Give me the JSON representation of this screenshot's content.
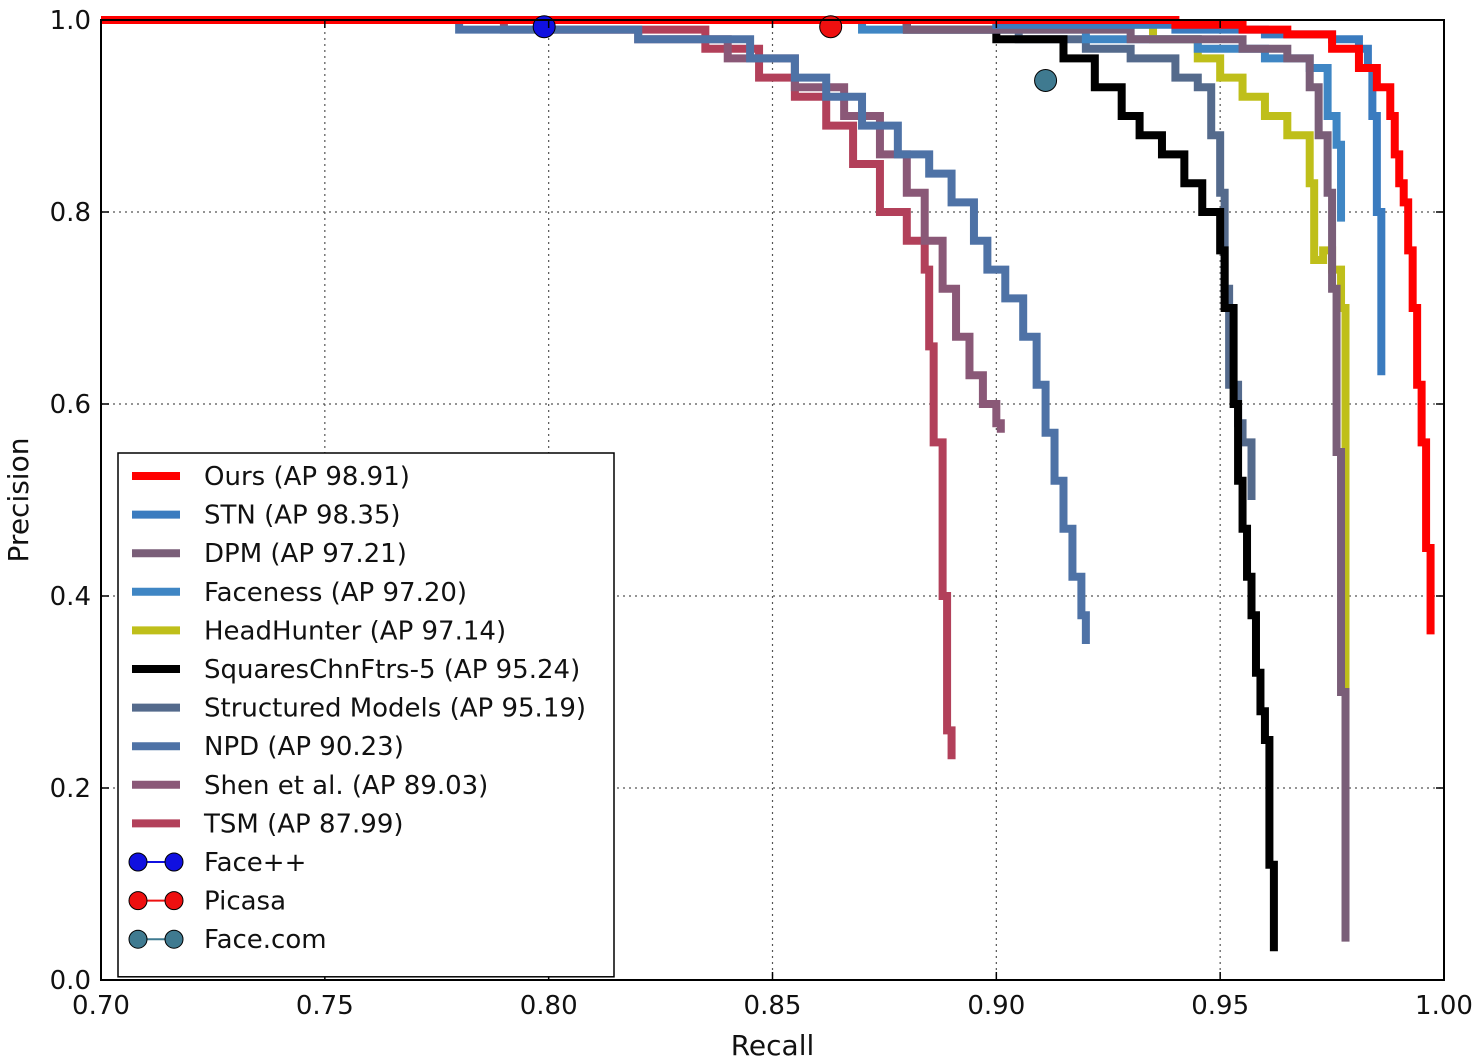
{
  "chart_data": {
    "type": "line",
    "title": "",
    "xlabel": "Recall",
    "ylabel": "Precision",
    "xlim": [
      0.7,
      1.0
    ],
    "ylim": [
      0.0,
      1.0
    ],
    "xticks": [
      "0.70",
      "0.75",
      "0.80",
      "0.85",
      "0.90",
      "0.95",
      "1.00"
    ],
    "yticks": [
      "0.0",
      "0.2",
      "0.4",
      "0.6",
      "0.8",
      "1.0"
    ],
    "grid": true,
    "legend_position": "bottom-left",
    "series": [
      {
        "name": "Ours (AP 98.91)",
        "color": "#ff0000",
        "x": [
          0.7,
          0.9,
          0.94,
          0.955,
          0.965,
          0.975,
          0.981,
          0.985,
          0.988,
          0.989,
          0.99,
          0.991,
          0.992,
          0.993,
          0.994,
          0.995,
          0.996,
          0.997,
          0.997
        ],
        "y": [
          1.0,
          1.0,
          0.995,
          0.99,
          0.985,
          0.97,
          0.95,
          0.93,
          0.9,
          0.86,
          0.83,
          0.81,
          0.76,
          0.7,
          0.62,
          0.56,
          0.45,
          0.42,
          0.36
        ]
      },
      {
        "name": "STN (AP 98.35)",
        "color": "#3a7bbf",
        "x": [
          0.7,
          0.9,
          0.94,
          0.96,
          0.975,
          0.981,
          0.983,
          0.984,
          0.985,
          0.986,
          0.986
        ],
        "y": [
          1.0,
          0.995,
          0.99,
          0.985,
          0.98,
          0.97,
          0.95,
          0.9,
          0.8,
          0.7,
          0.63
        ]
      },
      {
        "name": "DPM (AP 97.21)",
        "color": "#7a5e78",
        "x": [
          0.7,
          0.88,
          0.93,
          0.955,
          0.965,
          0.97,
          0.972,
          0.974,
          0.975,
          0.976,
          0.977,
          0.978,
          0.978
        ],
        "y": [
          1.0,
          0.99,
          0.98,
          0.97,
          0.96,
          0.93,
          0.88,
          0.82,
          0.72,
          0.55,
          0.3,
          0.2,
          0.04
        ]
      },
      {
        "name": "Faceness (AP 97.20)",
        "color": "#3f86c4",
        "x": [
          0.7,
          0.87,
          0.92,
          0.945,
          0.96,
          0.97,
          0.974,
          0.976,
          0.977,
          0.977
        ],
        "y": [
          1.0,
          0.99,
          0.98,
          0.97,
          0.96,
          0.95,
          0.9,
          0.87,
          0.8,
          0.79
        ]
      },
      {
        "name": "HeadHunter (AP 97.14)",
        "color": "#bfbf1a",
        "x": [
          0.7,
          0.9,
          0.935,
          0.945,
          0.95,
          0.955,
          0.96,
          0.965,
          0.97,
          0.97,
          0.971,
          0.973,
          0.975,
          0.977,
          0.978,
          0.978
        ],
        "y": [
          1.0,
          0.995,
          0.98,
          0.96,
          0.94,
          0.92,
          0.9,
          0.88,
          0.88,
          0.83,
          0.75,
          0.76,
          0.74,
          0.7,
          0.42,
          0.26
        ]
      },
      {
        "name": "SquaresChnFtrs-5 (AP 95.24)",
        "color": "#000000",
        "x": [
          0.7,
          0.88,
          0.9,
          0.915,
          0.922,
          0.928,
          0.932,
          0.937,
          0.942,
          0.946,
          0.95,
          0.951,
          0.953,
          0.954,
          0.955,
          0.956,
          0.957,
          0.958,
          0.959,
          0.96,
          0.961,
          0.962,
          0.962
        ],
        "y": [
          1.0,
          0.99,
          0.98,
          0.96,
          0.93,
          0.9,
          0.88,
          0.86,
          0.83,
          0.8,
          0.76,
          0.7,
          0.6,
          0.52,
          0.47,
          0.42,
          0.38,
          0.32,
          0.28,
          0.25,
          0.12,
          0.05,
          0.03
        ]
      },
      {
        "name": "Structured Models (AP 95.19)",
        "color": "#546a8c",
        "x": [
          0.7,
          0.88,
          0.905,
          0.92,
          0.93,
          0.94,
          0.945,
          0.948,
          0.95,
          0.951,
          0.952,
          0.954,
          0.955,
          0.957,
          0.957
        ],
        "y": [
          1.0,
          0.99,
          0.98,
          0.97,
          0.96,
          0.94,
          0.93,
          0.88,
          0.82,
          0.72,
          0.62,
          0.58,
          0.56,
          0.51,
          0.5
        ]
      },
      {
        "name": "NPD (AP 90.23)",
        "color": "#4e72a6",
        "x": [
          0.7,
          0.78,
          0.82,
          0.845,
          0.855,
          0.862,
          0.87,
          0.878,
          0.885,
          0.89,
          0.895,
          0.898,
          0.902,
          0.906,
          0.909,
          0.911,
          0.913,
          0.915,
          0.917,
          0.919,
          0.92
        ],
        "y": [
          1.0,
          0.99,
          0.98,
          0.96,
          0.94,
          0.92,
          0.89,
          0.86,
          0.84,
          0.81,
          0.77,
          0.74,
          0.71,
          0.67,
          0.62,
          0.57,
          0.52,
          0.47,
          0.42,
          0.38,
          0.35
        ]
      },
      {
        "name": "Shen et al. (AP 89.03)",
        "color": "#8a5877",
        "x": [
          0.7,
          0.79,
          0.82,
          0.84,
          0.855,
          0.866,
          0.874,
          0.88,
          0.884,
          0.888,
          0.891,
          0.894,
          0.897,
          0.9,
          0.901
        ],
        "y": [
          1.0,
          0.99,
          0.98,
          0.96,
          0.93,
          0.9,
          0.86,
          0.82,
          0.77,
          0.72,
          0.67,
          0.63,
          0.6,
          0.58,
          0.57
        ]
      },
      {
        "name": "TSM (AP 87.99)",
        "color": "#b2405a",
        "x": [
          0.7,
          0.8,
          0.835,
          0.847,
          0.855,
          0.862,
          0.868,
          0.874,
          0.88,
          0.884,
          0.885,
          0.886,
          0.888,
          0.889,
          0.89
        ],
        "y": [
          1.0,
          0.99,
          0.97,
          0.94,
          0.92,
          0.89,
          0.85,
          0.8,
          0.77,
          0.74,
          0.66,
          0.56,
          0.4,
          0.26,
          0.23
        ]
      }
    ],
    "points": [
      {
        "name": "Face++",
        "color": "#1010e0",
        "x": 0.799,
        "y": 0.993
      },
      {
        "name": "Picasa",
        "color": "#ee1010",
        "x": 0.863,
        "y": 0.993
      },
      {
        "name": "Face.com",
        "color": "#3f7a90",
        "x": 0.911,
        "y": 0.937
      }
    ]
  }
}
